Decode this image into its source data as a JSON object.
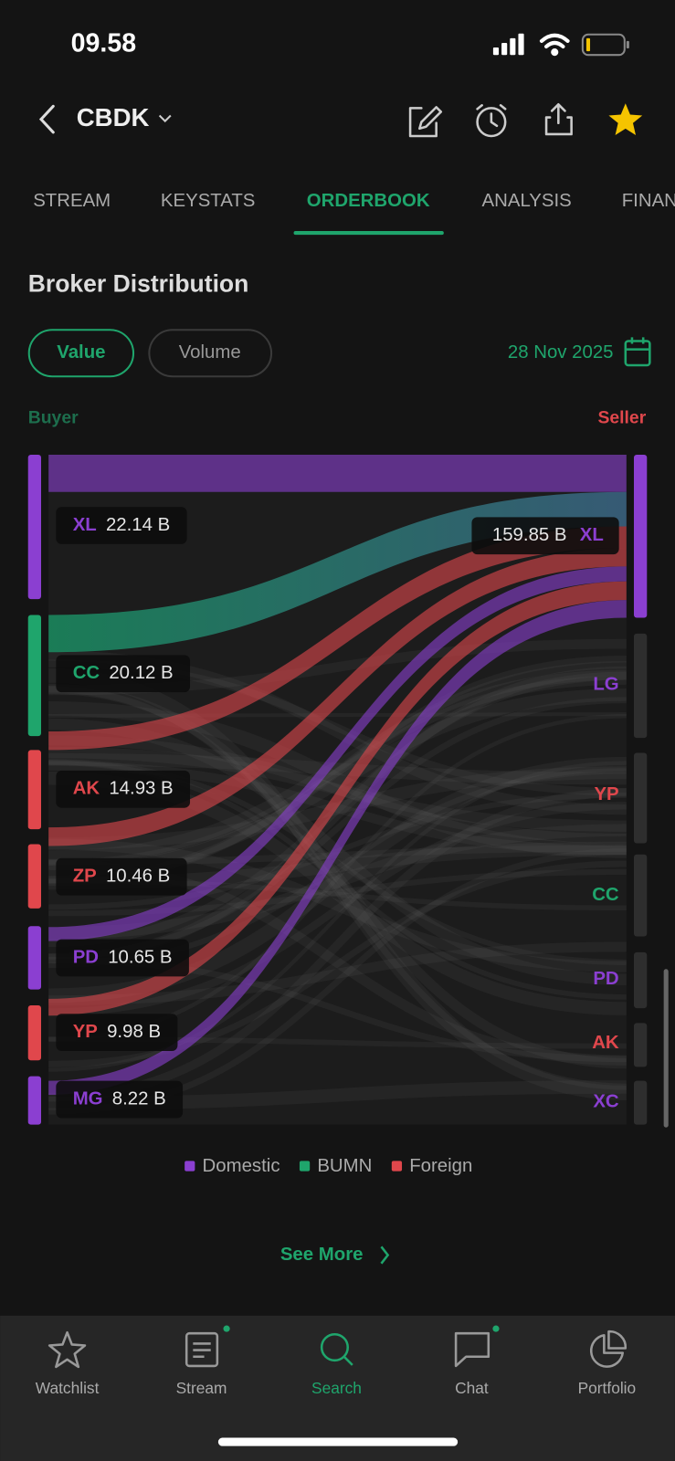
{
  "status_bar": {
    "time": "09.58"
  },
  "header": {
    "ticker": "CBDK"
  },
  "tabs": [
    "STREAM",
    "KEYSTATS",
    "ORDERBOOK",
    "ANALYSIS",
    "FINAN"
  ],
  "section": {
    "title": "Broker Distribution",
    "toggle": [
      "Value",
      "Volume"
    ],
    "date": "28 Nov 2025",
    "buyer_label": "Buyer",
    "seller_label": "Seller"
  },
  "buyers": [
    {
      "code": "XL",
      "value": "22.14 B",
      "color": "#8b3fd1"
    },
    {
      "code": "CC",
      "value": "20.12 B",
      "color": "#1fa56c"
    },
    {
      "code": "AK",
      "value": "14.93 B",
      "color": "#e0474c"
    },
    {
      "code": "ZP",
      "value": "10.46 B",
      "color": "#e0474c"
    },
    {
      "code": "PD",
      "value": "10.65 B",
      "color": "#8b3fd1"
    },
    {
      "code": "YP",
      "value": "9.98 B",
      "color": "#e0474c"
    },
    {
      "code": "MG",
      "value": "8.22 B",
      "color": "#8b3fd1"
    }
  ],
  "sellers": [
    {
      "code": "XL",
      "value": "159.85 B",
      "color": "#8b3fd1"
    },
    {
      "code": "LG",
      "color": "#8b3fd1"
    },
    {
      "code": "YP",
      "color": "#e0474c"
    },
    {
      "code": "CC",
      "color": "#1fa56c"
    },
    {
      "code": "PD",
      "color": "#8b3fd1"
    },
    {
      "code": "AK",
      "color": "#e0474c"
    },
    {
      "code": "XC",
      "color": "#8b3fd1"
    }
  ],
  "legend": [
    {
      "label": "Domestic",
      "color": "#8b3fd1"
    },
    {
      "label": "BUMN",
      "color": "#1fa56c"
    },
    {
      "label": "Foreign",
      "color": "#e0474c"
    }
  ],
  "see_more": "See More",
  "nav": [
    "Watchlist",
    "Stream",
    "Search",
    "Chat",
    "Portfolio"
  ]
}
